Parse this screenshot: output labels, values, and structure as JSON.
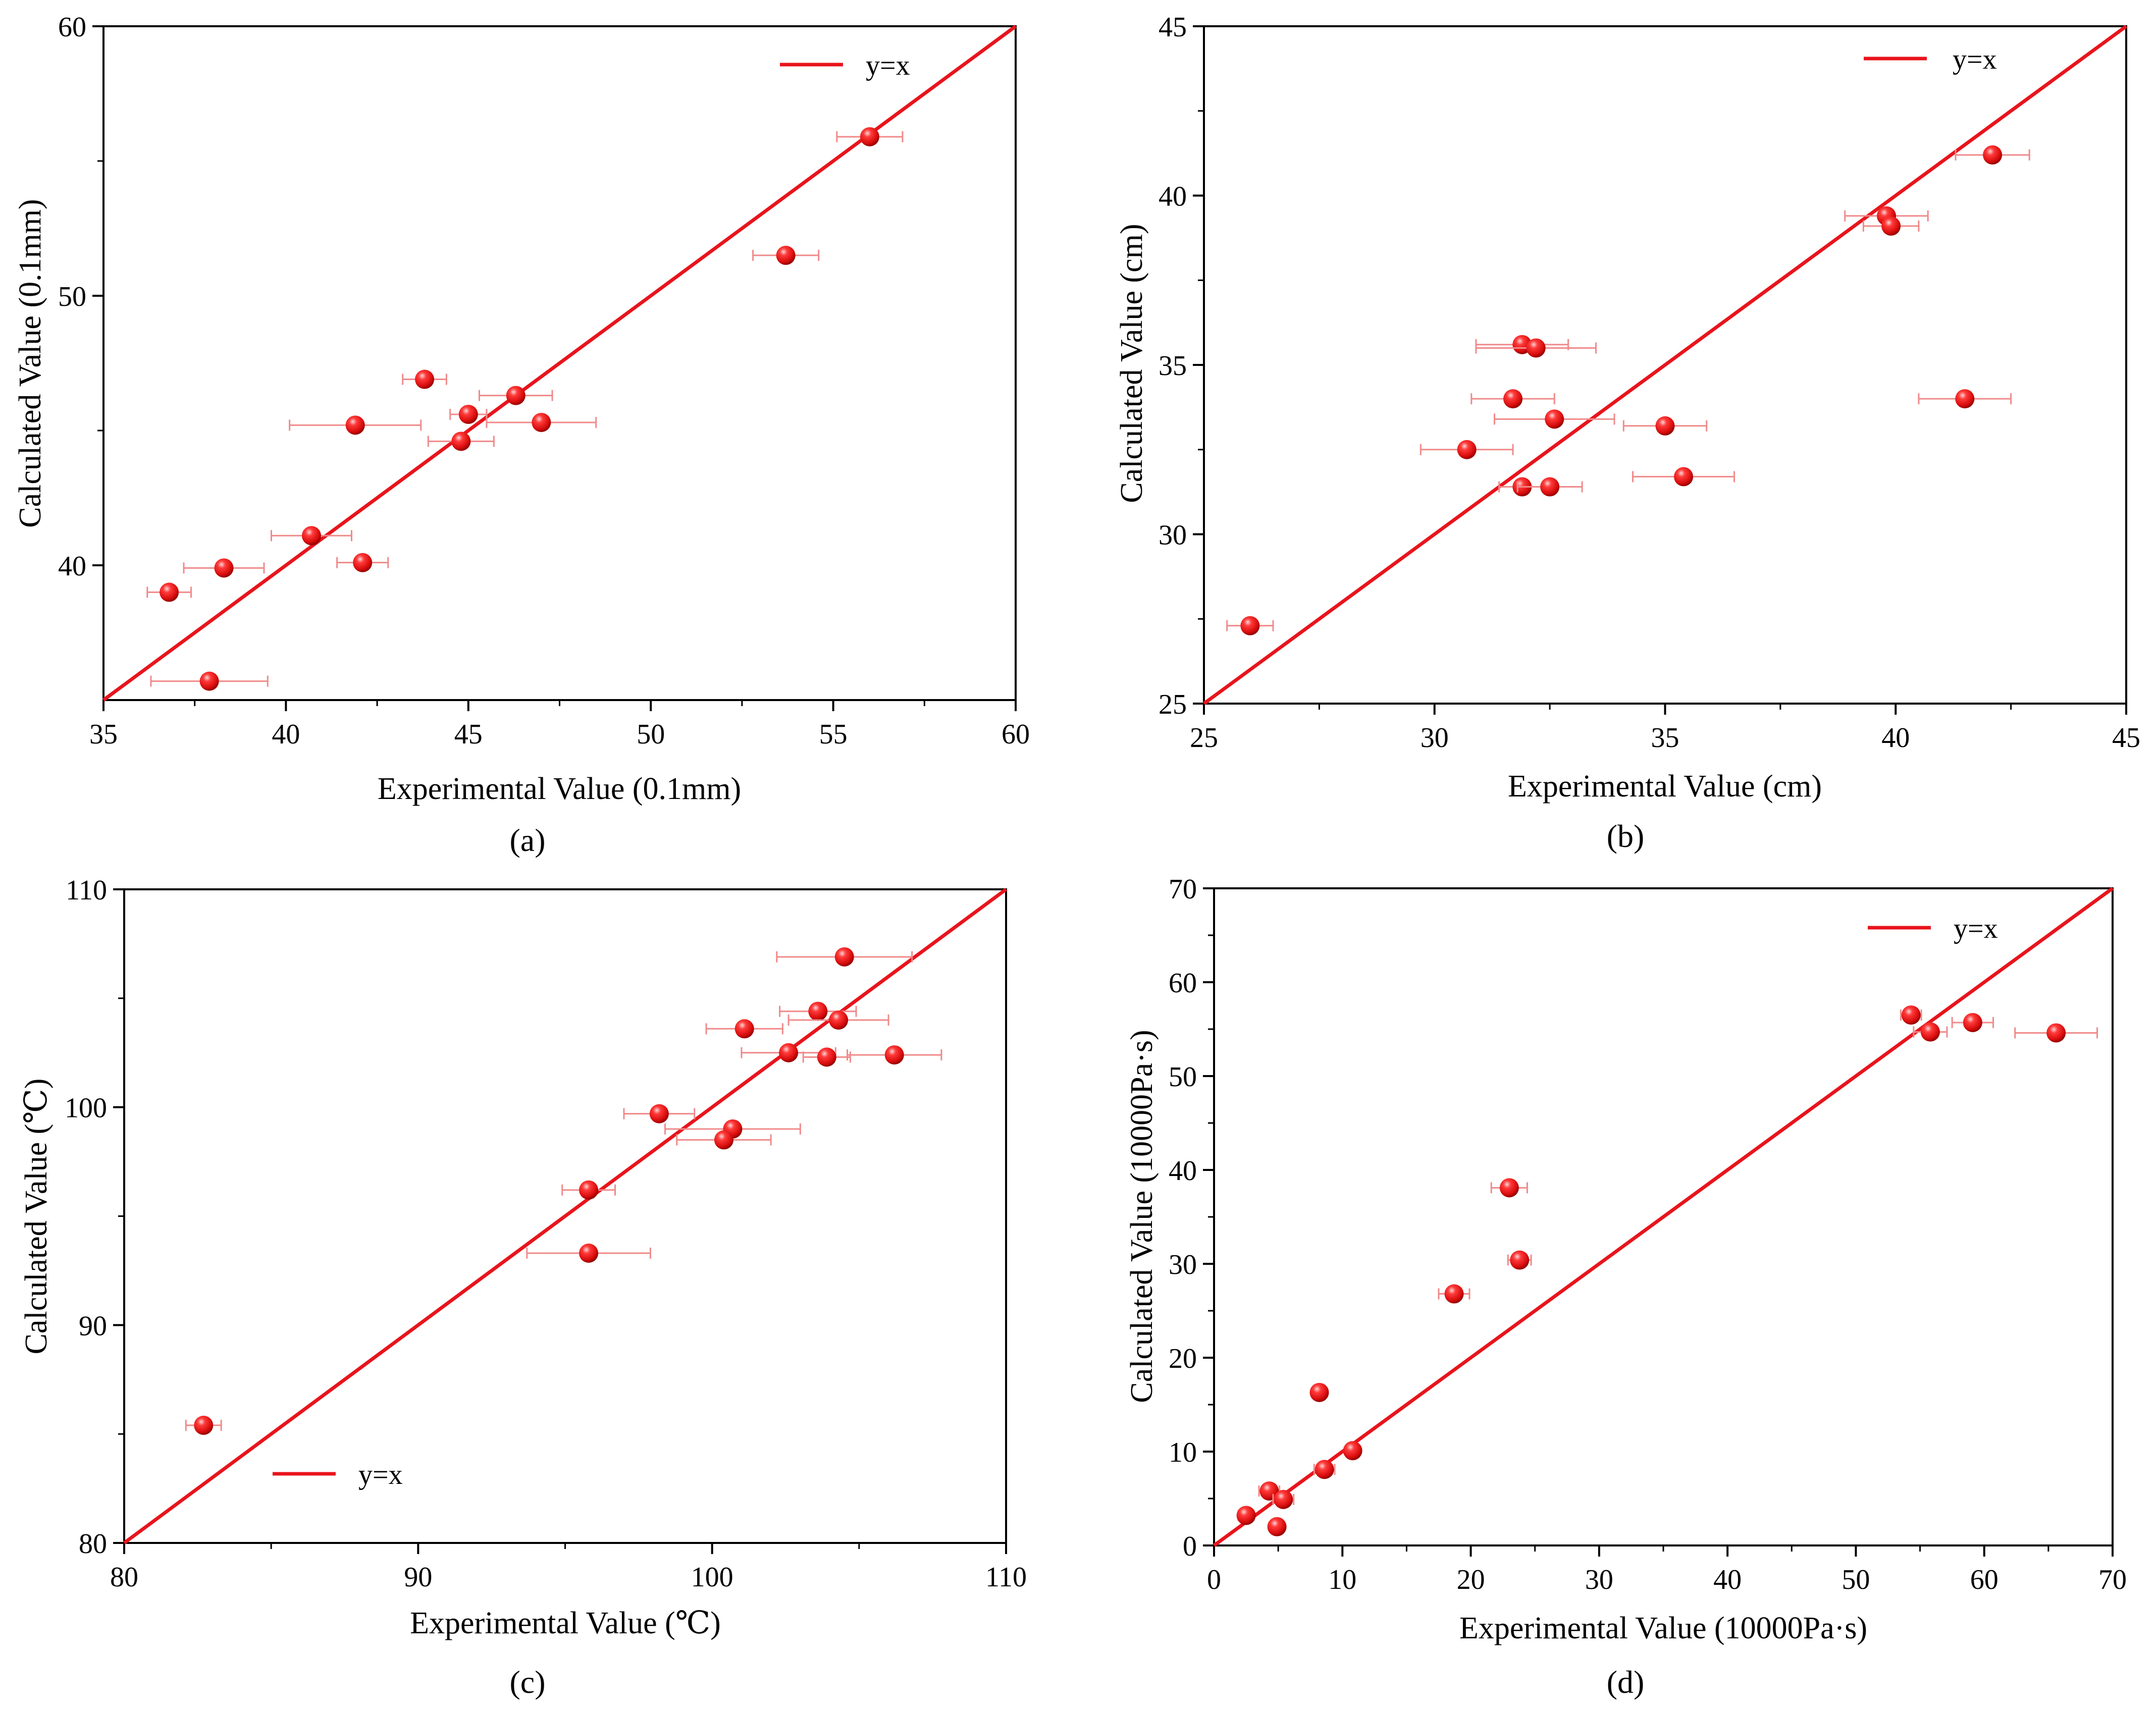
{
  "colors": {
    "line": "#e8141c",
    "point": "#e01818",
    "error": "#f08a8a",
    "axis": "#000000"
  },
  "chart_data": [
    {
      "panel": "(a)",
      "type": "scatter",
      "xlabel": "Experimental Value (0.1mm)",
      "ylabel": "Calculated Value (0.1mm)",
      "xlim": [
        35,
        60
      ],
      "ylim": [
        35,
        60
      ],
      "xticks": [
        35,
        40,
        45,
        50,
        55,
        60
      ],
      "yticks": [
        40,
        50,
        60
      ],
      "legend": {
        "label": "y=x",
        "position": "top-right"
      },
      "reference_line": "y=x",
      "points": [
        {
          "x": 56.0,
          "y": 55.9,
          "xerr": 0.9
        },
        {
          "x": 53.7,
          "y": 51.5,
          "xerr": 0.9
        },
        {
          "x": 43.8,
          "y": 46.9,
          "xerr": 0.6
        },
        {
          "x": 46.3,
          "y": 46.3,
          "xerr": 1.0
        },
        {
          "x": 45.0,
          "y": 45.6,
          "xerr": 0.5
        },
        {
          "x": 41.9,
          "y": 45.2,
          "xerr": 1.8
        },
        {
          "x": 47.0,
          "y": 45.3,
          "xerr": 1.5
        },
        {
          "x": 44.8,
          "y": 44.6,
          "xerr": 0.9
        },
        {
          "x": 40.7,
          "y": 41.1,
          "xerr": 1.1
        },
        {
          "x": 42.1,
          "y": 40.1,
          "xerr": 0.7
        },
        {
          "x": 38.3,
          "y": 39.9,
          "xerr": 1.1
        },
        {
          "x": 36.8,
          "y": 39.0,
          "xerr": 0.6
        },
        {
          "x": 37.9,
          "y": 35.7,
          "xerr": 1.6
        }
      ]
    },
    {
      "panel": "(b)",
      "type": "scatter",
      "xlabel": "Experimental Value (cm)",
      "ylabel": "Calculated Value (cm)",
      "xlim": [
        25,
        45
      ],
      "ylim": [
        25,
        45
      ],
      "xticks": [
        25,
        30,
        35,
        40,
        45
      ],
      "yticks": [
        25,
        30,
        35,
        40,
        45
      ],
      "legend": {
        "label": "y=x",
        "position": "top-right"
      },
      "reference_line": "y=x",
      "points": [
        {
          "x": 42.1,
          "y": 41.2,
          "xerr": 0.8
        },
        {
          "x": 39.8,
          "y": 39.4,
          "xerr": 0.9
        },
        {
          "x": 39.9,
          "y": 39.1,
          "xerr": 0.6
        },
        {
          "x": 31.9,
          "y": 35.6,
          "xerr": 1.0
        },
        {
          "x": 32.2,
          "y": 35.5,
          "xerr": 1.3
        },
        {
          "x": 31.7,
          "y": 34.0,
          "xerr": 0.9
        },
        {
          "x": 41.5,
          "y": 34.0,
          "xerr": 1.0
        },
        {
          "x": 32.6,
          "y": 33.4,
          "xerr": 1.3
        },
        {
          "x": 35.0,
          "y": 33.2,
          "xerr": 0.9
        },
        {
          "x": 30.7,
          "y": 32.5,
          "xerr": 1.0
        },
        {
          "x": 35.4,
          "y": 31.7,
          "xerr": 1.1
        },
        {
          "x": 31.9,
          "y": 31.4,
          "xerr": 0.5
        },
        {
          "x": 32.5,
          "y": 31.4,
          "xerr": 0.7
        },
        {
          "x": 26.0,
          "y": 27.3,
          "xerr": 0.5
        }
      ]
    },
    {
      "panel": "(c)",
      "type": "scatter",
      "xlabel": "Experimental Value (℃)",
      "ylabel": "Calculated Value (℃)",
      "xlim": [
        80,
        110
      ],
      "ylim": [
        80,
        110
      ],
      "xticks": [
        80,
        90,
        100,
        110
      ],
      "yticks": [
        80,
        90,
        100,
        110
      ],
      "legend": {
        "label": "y=x",
        "position": "bottom-left"
      },
      "reference_line": "y=x",
      "points": [
        {
          "x": 104.5,
          "y": 106.9,
          "xerr": 2.3
        },
        {
          "x": 103.6,
          "y": 104.4,
          "xerr": 1.3
        },
        {
          "x": 104.3,
          "y": 104.0,
          "xerr": 1.7
        },
        {
          "x": 101.1,
          "y": 103.6,
          "xerr": 1.3
        },
        {
          "x": 102.6,
          "y": 102.5,
          "xerr": 1.6
        },
        {
          "x": 103.9,
          "y": 102.3,
          "xerr": 0.8
        },
        {
          "x": 106.2,
          "y": 102.4,
          "xerr": 1.6
        },
        {
          "x": 98.2,
          "y": 99.7,
          "xerr": 1.2
        },
        {
          "x": 100.7,
          "y": 99.0,
          "xerr": 2.3
        },
        {
          "x": 100.4,
          "y": 98.5,
          "xerr": 1.6
        },
        {
          "x": 95.8,
          "y": 96.2,
          "xerr": 0.9
        },
        {
          "x": 95.8,
          "y": 93.3,
          "xerr": 2.1
        },
        {
          "x": 82.7,
          "y": 85.4,
          "xerr": 0.6
        }
      ]
    },
    {
      "panel": "(d)",
      "type": "scatter",
      "xlabel": "Experimental Value (10000Pa·s)",
      "ylabel": "Calculated Value (10000Pa·s)",
      "xlim": [
        0,
        70
      ],
      "ylim": [
        0,
        70
      ],
      "xticks": [
        0,
        10,
        20,
        30,
        40,
        50,
        60,
        70
      ],
      "yticks": [
        0,
        10,
        20,
        30,
        40,
        50,
        60,
        70
      ],
      "legend": {
        "label": "y=x",
        "position": "top-right"
      },
      "reference_line": "y=x",
      "points": [
        {
          "x": 54.3,
          "y": 56.5,
          "xerr": 0.8
        },
        {
          "x": 59.1,
          "y": 55.7,
          "xerr": 1.6
        },
        {
          "x": 55.8,
          "y": 54.7,
          "xerr": 1.3
        },
        {
          "x": 65.6,
          "y": 54.6,
          "xerr": 3.2
        },
        {
          "x": 23.0,
          "y": 38.1,
          "xerr": 1.4
        },
        {
          "x": 23.8,
          "y": 30.4,
          "xerr": 0.9
        },
        {
          "x": 18.7,
          "y": 26.8,
          "xerr": 1.2
        },
        {
          "x": 8.2,
          "y": 16.3,
          "xerr": 0.3
        },
        {
          "x": 10.8,
          "y": 10.1,
          "xerr": 0.5
        },
        {
          "x": 8.6,
          "y": 8.1,
          "xerr": 0.8
        },
        {
          "x": 4.3,
          "y": 5.8,
          "xerr": 0.8
        },
        {
          "x": 5.4,
          "y": 4.9,
          "xerr": 0.8
        },
        {
          "x": 2.5,
          "y": 3.2,
          "xerr": 0.6
        },
        {
          "x": 4.9,
          "y": 2.0,
          "xerr": 0.4
        }
      ]
    }
  ]
}
